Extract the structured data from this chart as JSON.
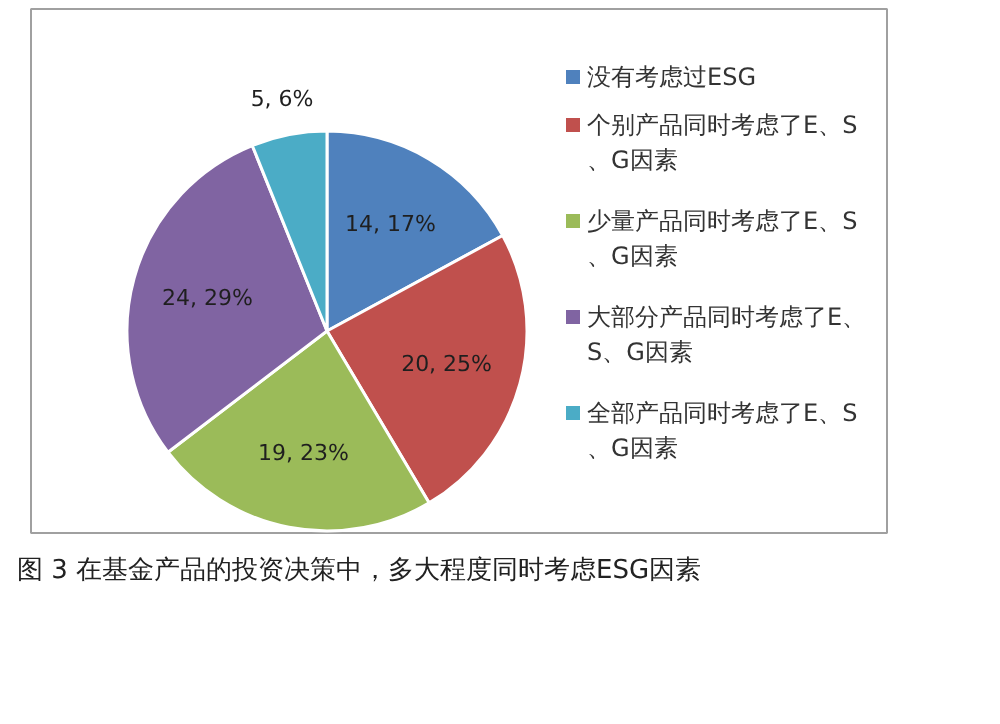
{
  "chart_data": {
    "type": "pie",
    "categories": [
      "没有考虑过ESG",
      "个别产品同时考虑了E、S、G因素",
      "少量产品同时考虑了E、S、G因素",
      "大部分产品同时考虑了E、S、G因素",
      "全部产品同时考虑了E、S、G因素"
    ],
    "values": [
      14,
      20,
      19,
      24,
      5
    ],
    "colors": [
      "#4f81bd",
      "#c0504d",
      "#9bbb59",
      "#8064a2",
      "#4bacc6"
    ],
    "value_labels": [
      "14, 17%",
      "20, 25%",
      "19, 23%",
      "24, 29%",
      "5, 6%"
    ],
    "legend": "right",
    "annotations": [
      "图 3 在基金产品的投资决策中，多大程度同时考虑ESG因素"
    ]
  }
}
